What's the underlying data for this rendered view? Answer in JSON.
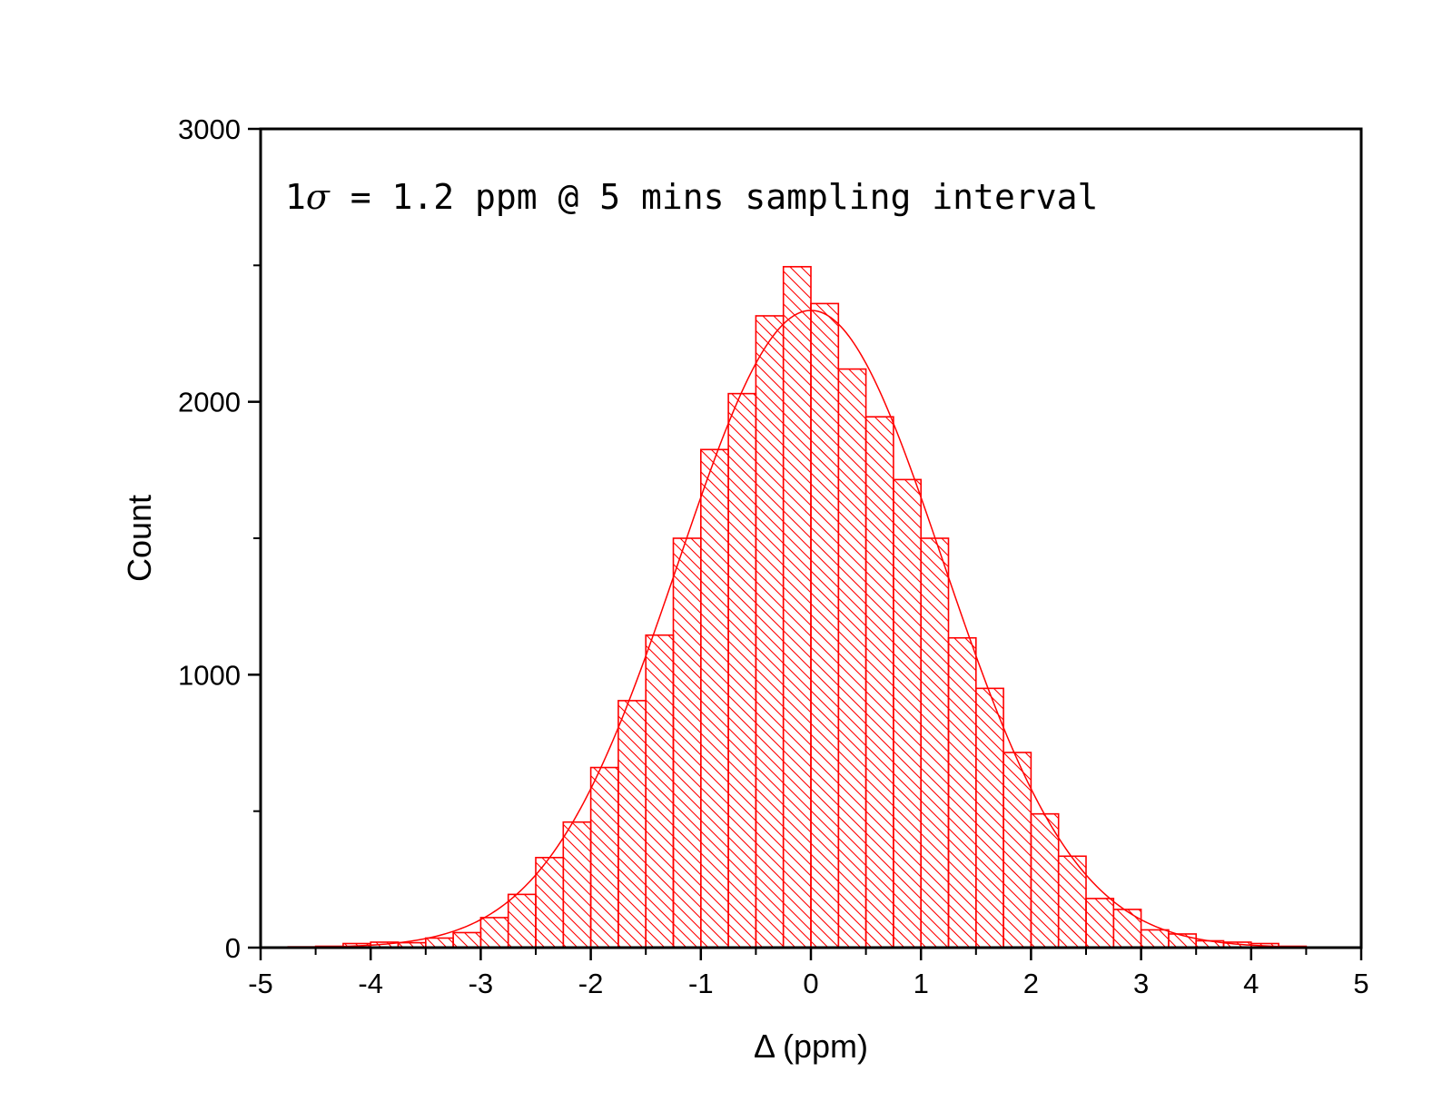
{
  "chart_data": {
    "type": "bar",
    "subtype": "histogram",
    "annotation": {
      "prefix": "1",
      "symbol": "σ",
      "text": " = 1.2 ppm @ 5 mins sampling interval"
    },
    "xlabel": "Δ (ppm)",
    "ylabel": "Count",
    "xlim": [
      -5,
      5
    ],
    "ylim": [
      0,
      3000
    ],
    "xticks": [
      "-5",
      "-4",
      "-3",
      "-2",
      "-1",
      "0",
      "1",
      "2",
      "3",
      "4",
      "5"
    ],
    "yticks": [
      "0",
      "1000",
      "2000",
      "3000"
    ],
    "bin_width": 0.25,
    "bins": [
      {
        "x0": -4.75,
        "value": 3
      },
      {
        "x0": -4.5,
        "value": 5
      },
      {
        "x0": -4.25,
        "value": 15
      },
      {
        "x0": -4.0,
        "value": 20
      },
      {
        "x0": -3.75,
        "value": 18
      },
      {
        "x0": -3.5,
        "value": 35
      },
      {
        "x0": -3.25,
        "value": 55
      },
      {
        "x0": -3.0,
        "value": 110
      },
      {
        "x0": -2.75,
        "value": 195
      },
      {
        "x0": -2.5,
        "value": 330
      },
      {
        "x0": -2.25,
        "value": 460
      },
      {
        "x0": -2.0,
        "value": 660
      },
      {
        "x0": -1.75,
        "value": 905
      },
      {
        "x0": -1.5,
        "value": 1145
      },
      {
        "x0": -1.25,
        "value": 1500
      },
      {
        "x0": -1.0,
        "value": 1825
      },
      {
        "x0": -0.75,
        "value": 2030
      },
      {
        "x0": -0.5,
        "value": 2315
      },
      {
        "x0": -0.25,
        "value": 2495
      },
      {
        "x0": 0.0,
        "value": 2360
      },
      {
        "x0": 0.25,
        "value": 2120
      },
      {
        "x0": 0.5,
        "value": 1945
      },
      {
        "x0": 0.75,
        "value": 1715
      },
      {
        "x0": 1.0,
        "value": 1500
      },
      {
        "x0": 1.25,
        "value": 1135
      },
      {
        "x0": 1.5,
        "value": 950
      },
      {
        "x0": 1.75,
        "value": 715
      },
      {
        "x0": 2.0,
        "value": 490
      },
      {
        "x0": 2.25,
        "value": 335
      },
      {
        "x0": 2.5,
        "value": 180
      },
      {
        "x0": 2.75,
        "value": 140
      },
      {
        "x0": 3.0,
        "value": 65
      },
      {
        "x0": 3.25,
        "value": 50
      },
      {
        "x0": 3.5,
        "value": 25
      },
      {
        "x0": 3.75,
        "value": 20
      },
      {
        "x0": 4.0,
        "value": 15
      },
      {
        "x0": 4.25,
        "value": 5
      }
    ],
    "fit": {
      "type": "gaussian",
      "mean": 0.0,
      "sigma": 1.2,
      "amplitude": 2335
    },
    "grid": false,
    "legend": "none",
    "colors": {
      "bars": "#ff0000",
      "fit": "#ff0000",
      "axes": "#000000"
    }
  }
}
